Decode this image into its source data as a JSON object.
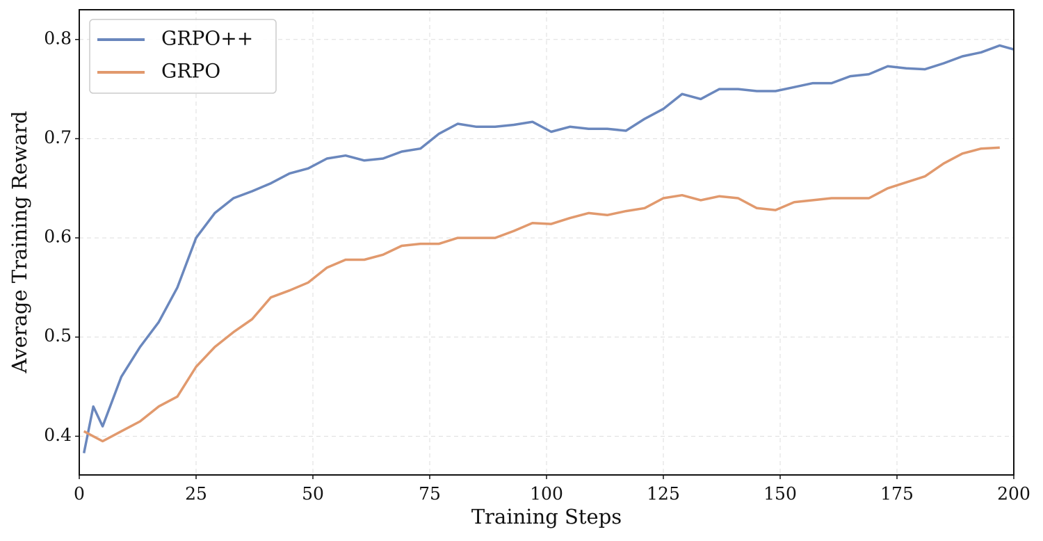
{
  "chart_data": {
    "type": "line",
    "xlabel": "Training Steps",
    "ylabel": "Average Training Reward",
    "x": [
      1,
      3,
      5,
      9,
      13,
      17,
      21,
      25,
      29,
      33,
      37,
      41,
      45,
      49,
      53,
      57,
      61,
      65,
      69,
      73,
      77,
      81,
      85,
      89,
      93,
      97,
      101,
      105,
      109,
      113,
      117,
      121,
      125,
      129,
      133,
      137,
      141,
      145,
      149,
      153,
      157,
      161,
      165,
      169,
      173,
      177,
      181,
      185,
      189,
      193,
      197,
      200
    ],
    "series": [
      {
        "name": "GRPO++",
        "color": "#6a87bd",
        "values": [
          0.383,
          0.43,
          0.41,
          0.46,
          0.49,
          0.515,
          0.55,
          0.6,
          0.625,
          0.64,
          0.647,
          0.655,
          0.665,
          0.67,
          0.68,
          0.683,
          0.678,
          0.68,
          0.687,
          0.69,
          0.705,
          0.715,
          0.712,
          0.712,
          0.714,
          0.717,
          0.707,
          0.712,
          0.71,
          0.71,
          0.708,
          0.72,
          0.73,
          0.745,
          0.74,
          0.75,
          0.75,
          0.748,
          0.748,
          0.752,
          0.756,
          0.756,
          0.763,
          0.765,
          0.773,
          0.771,
          0.77,
          0.776,
          0.783,
          0.787,
          0.794,
          0.79
        ]
      },
      {
        "name": "GRPO",
        "color": "#e1996d",
        "values": [
          0.405,
          0.4,
          0.395,
          0.405,
          0.415,
          0.43,
          0.44,
          0.47,
          0.49,
          0.505,
          0.518,
          0.54,
          0.547,
          0.555,
          0.57,
          0.578,
          0.578,
          0.583,
          0.592,
          0.594,
          0.594,
          0.6,
          0.6,
          0.6,
          0.607,
          0.615,
          0.614,
          0.62,
          0.625,
          0.623,
          0.627,
          0.63,
          0.64,
          0.643,
          0.638,
          0.642,
          0.64,
          0.63,
          0.628,
          0.636,
          0.638,
          0.64,
          0.64,
          0.64,
          0.65,
          0.656,
          0.662,
          0.675,
          0.685,
          0.69,
          0.691,
          null
        ]
      }
    ],
    "xlim": [
      0,
      200
    ],
    "xticks": [
      0,
      25,
      50,
      75,
      100,
      125,
      150,
      175,
      200
    ],
    "ylim": [
      0.361,
      0.83
    ],
    "yticks": [
      0.4,
      0.5,
      0.6,
      0.7,
      0.8
    ],
    "grid": true,
    "legend": "upper-left"
  }
}
